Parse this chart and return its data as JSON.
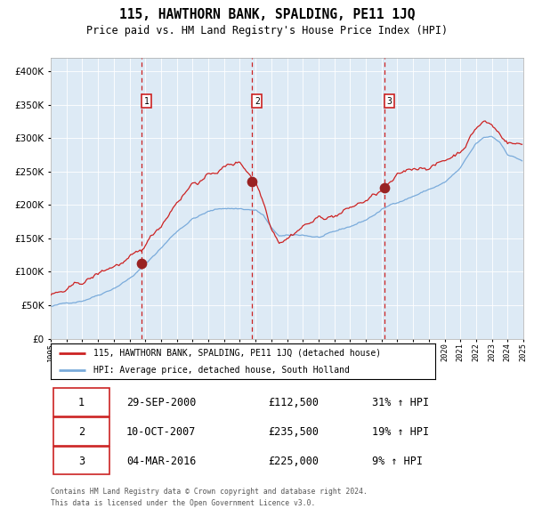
{
  "title": "115, HAWTHORN BANK, SPALDING, PE11 1JQ",
  "subtitle": "Price paid vs. HM Land Registry's House Price Index (HPI)",
  "legend_line1": "115, HAWTHORN BANK, SPALDING, PE11 1JQ (detached house)",
  "legend_line2": "HPI: Average price, detached house, South Holland",
  "transaction1_date": "29-SEP-2000",
  "transaction1_price": "£112,500",
  "transaction1_hpi": "31% ↑ HPI",
  "transaction1_year": 2000.75,
  "transaction1_value": 112500,
  "transaction2_date": "10-OCT-2007",
  "transaction2_price": "£235,500",
  "transaction2_hpi": "19% ↑ HPI",
  "transaction2_year": 2007.78,
  "transaction2_value": 235500,
  "transaction3_date": "04-MAR-2016",
  "transaction3_price": "£225,000",
  "transaction3_hpi": "9% ↑ HPI",
  "transaction3_year": 2016.17,
  "transaction3_value": 225000,
  "footer_line1": "Contains HM Land Registry data © Crown copyright and database right 2024.",
  "footer_line2": "This data is licensed under the Open Government Licence v3.0.",
  "hpi_color": "#7aabdb",
  "price_color": "#cc2222",
  "dot_color": "#992222",
  "vline_color": "#cc2222",
  "background_color": "#ddeaf5",
  "grid_color": "#ffffff",
  "ylim": [
    0,
    420000
  ],
  "xlim_start": 1995,
  "xlim_end": 2025
}
